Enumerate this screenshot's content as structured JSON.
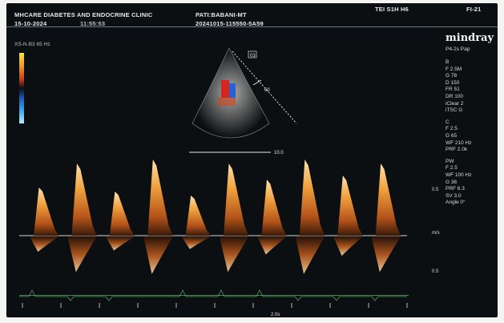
{
  "header": {
    "clinic": "MHCARE DIABETES AND ENDOCRINE CLINIC",
    "patient": "PATI:BABANI-MT",
    "id": "20241015-115550-5A59",
    "probe": "TEI  S1H H6",
    "frame": "FI-21",
    "date": "15-10-2024",
    "time": "11:55:53"
  },
  "overlay": {
    "scale_label": "XS-N-B3 65 H1",
    "inset_badge": "03",
    "angle_mark": "60",
    "depth_mark": "10.0"
  },
  "brand": {
    "name": "mindray",
    "mode": "P4-2s Pap"
  },
  "right_panel": [
    "B",
    "F 2.5M",
    "G 78",
    "D 150",
    "FR 51",
    "DR 100",
    "iClear 2",
    "iTSC G",
    "",
    "C",
    "F 2.5",
    "G 65",
    "WF 210 Hz",
    "PRF 2.0k",
    "",
    "PW",
    "F 2.5",
    "WF 100 Hz",
    "G 36",
    "PRF 6.3",
    "SV 3.0",
    "Angle 0°"
  ],
  "scale_marks": [
    "0.5",
    "m/s",
    "0.5"
  ],
  "bottom_scale": "2.0s",
  "colors": {
    "screen": "#0b0f12",
    "spectral_bright": "#ffd79a",
    "spectral_mid": "#e6862a",
    "spectral_dark": "#6b2d0c",
    "baseline": "#d6d6d6",
    "ecg": "#6fcf7b"
  },
  "doppler_peaks_ms": [
    0.6,
    0.9,
    0.55,
    0.95,
    0.5,
    0.9,
    0.7,
    0.95,
    0.75,
    0.9
  ],
  "icons": [
    "doppler-probe-icon",
    "sector-scan-icon"
  ]
}
